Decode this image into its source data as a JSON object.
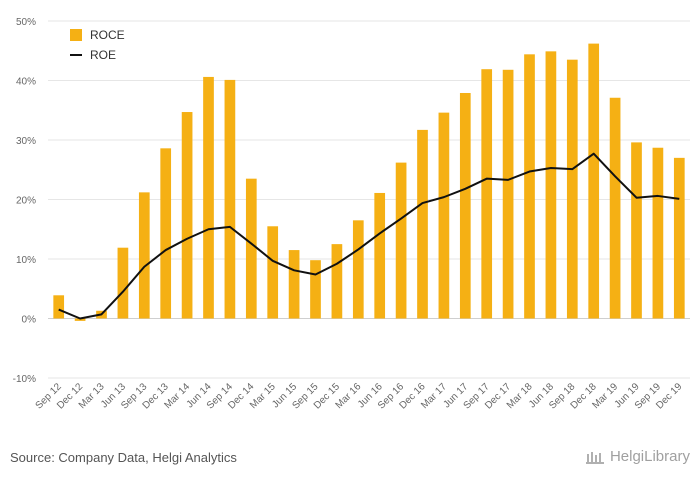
{
  "chart_data": {
    "type": "bar",
    "categories": [
      "Sep 12",
      "Dec 12",
      "Mar 13",
      "Jun 13",
      "Sep 13",
      "Dec 13",
      "Mar 14",
      "Jun 14",
      "Sep 14",
      "Dec 14",
      "Mar 15",
      "Jun 15",
      "Sep 15",
      "Dec 15",
      "Mar 16",
      "Jun 16",
      "Sep 16",
      "Dec 16",
      "Mar 17",
      "Jun 17",
      "Sep 17",
      "Dec 17",
      "Mar 18",
      "Jun 18",
      "Sep 18",
      "Dec 18",
      "Mar 19",
      "Jun 19",
      "Sep 19",
      "Dec 19"
    ],
    "series": [
      {
        "name": "ROCE",
        "type": "bar",
        "color": "#f5b014",
        "values": [
          3.9,
          -0.4,
          1.3,
          11.9,
          21.2,
          28.6,
          34.7,
          40.6,
          40.1,
          23.5,
          15.5,
          11.5,
          9.8,
          12.5,
          16.5,
          21.1,
          26.2,
          31.7,
          34.6,
          37.9,
          41.9,
          41.8,
          44.4,
          44.9,
          43.5,
          46.2,
          37.1,
          29.6,
          28.7,
          27.0
        ]
      },
      {
        "name": "ROE",
        "type": "line",
        "color": "#111111",
        "values": [
          1.5,
          0.0,
          0.7,
          4.5,
          8.7,
          11.5,
          13.4,
          15.0,
          15.4,
          12.6,
          9.7,
          8.1,
          7.4,
          9.2,
          11.6,
          14.3,
          16.8,
          19.4,
          20.4,
          21.8,
          23.5,
          23.3,
          24.7,
          25.3,
          25.1,
          27.7,
          23.9,
          20.3,
          20.6,
          20.1
        ]
      }
    ],
    "ylim": [
      -10,
      50
    ],
    "yticks": [
      -10,
      0,
      10,
      20,
      30,
      40,
      50
    ],
    "ytick_labels": [
      "-10%",
      "0%",
      "10%",
      "20%",
      "30%",
      "40%",
      "50%"
    ],
    "grid": true,
    "legend_position": "top-left"
  },
  "footer": {
    "source": "Source: Company Data, Helgi Analytics",
    "brand": "HelgiLibrary"
  }
}
